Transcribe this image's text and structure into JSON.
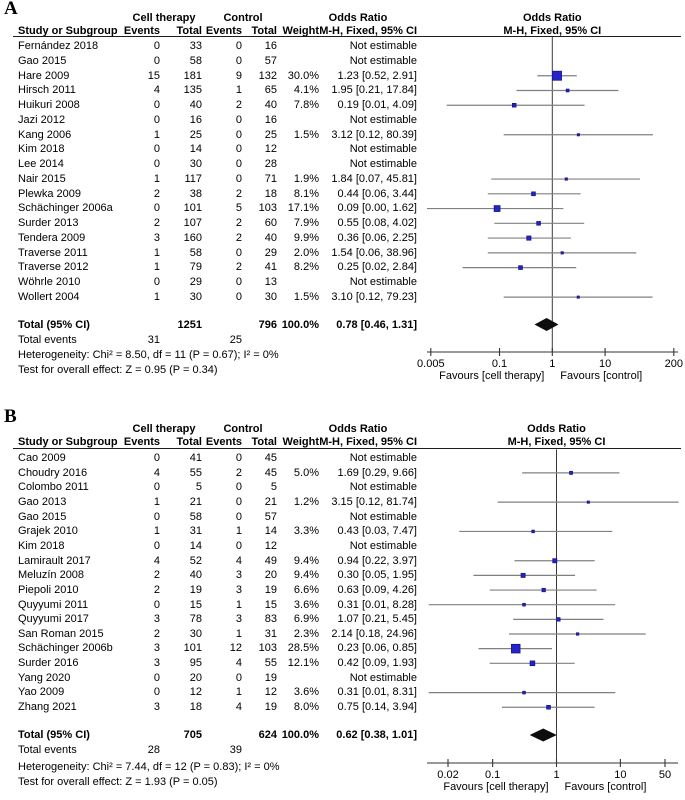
{
  "colors": {
    "background": "#ffffff",
    "text": "#000000",
    "header_rule": "#1c1c1c",
    "marker_blue": "#2424c8",
    "marker_border": "#15158a",
    "ci_line": "#808080",
    "plot_centerline": "#3a3a3a",
    "axis_line": "#333333",
    "summary_diamond": "#0d0d0d"
  },
  "chart_data": [
    {
      "type": "forest",
      "label": "A",
      "groups": {
        "treatment": "Cell therapy",
        "control": "Control",
        "or_title": "Odds Ratio"
      },
      "columns": {
        "study": "Study or Subgroup",
        "events": "Events",
        "total": "Total",
        "weight": "Weight",
        "or_ci": "M-H, Fixed, 95% CI"
      },
      "rows": [
        {
          "study": "Fernández 2018",
          "e1": "0",
          "t1": "33",
          "e2": "0",
          "t2": "16",
          "weight": "",
          "or_ci": "Not estimable",
          "or": null,
          "lo": null,
          "hi": null,
          "w": 0
        },
        {
          "study": "Gao 2015",
          "e1": "0",
          "t1": "58",
          "e2": "0",
          "t2": "57",
          "weight": "",
          "or_ci": "Not estimable",
          "or": null,
          "lo": null,
          "hi": null,
          "w": 0
        },
        {
          "study": "Hare 2009",
          "e1": "15",
          "t1": "181",
          "e2": "9",
          "t2": "132",
          "weight": "30.0%",
          "or_ci": "1.23 [0.52, 2.91]",
          "or": 1.23,
          "lo": 0.52,
          "hi": 2.91,
          "w": 30.0
        },
        {
          "study": "Hirsch 2011",
          "e1": "4",
          "t1": "135",
          "e2": "1",
          "t2": "65",
          "weight": "4.1%",
          "or_ci": "1.95 [0.21, 17.84]",
          "or": 1.95,
          "lo": 0.21,
          "hi": 17.84,
          "w": 4.1
        },
        {
          "study": "Huikuri 2008",
          "e1": "0",
          "t1": "40",
          "e2": "2",
          "t2": "40",
          "weight": "7.8%",
          "or_ci": "0.19 [0.01, 4.09]",
          "or": 0.19,
          "lo": 0.01,
          "hi": 4.09,
          "w": 7.8
        },
        {
          "study": "Jazi 2012",
          "e1": "0",
          "t1": "16",
          "e2": "0",
          "t2": "16",
          "weight": "",
          "or_ci": "Not estimable",
          "or": null,
          "lo": null,
          "hi": null,
          "w": 0
        },
        {
          "study": "Kang 2006",
          "e1": "1",
          "t1": "25",
          "e2": "0",
          "t2": "25",
          "weight": "1.5%",
          "or_ci": "3.12 [0.12, 80.39]",
          "or": 3.12,
          "lo": 0.12,
          "hi": 80.39,
          "w": 1.5
        },
        {
          "study": "Kim 2018",
          "e1": "0",
          "t1": "14",
          "e2": "0",
          "t2": "12",
          "weight": "",
          "or_ci": "Not estimable",
          "or": null,
          "lo": null,
          "hi": null,
          "w": 0
        },
        {
          "study": "Lee 2014",
          "e1": "0",
          "t1": "30",
          "e2": "0",
          "t2": "28",
          "weight": "",
          "or_ci": "Not estimable",
          "or": null,
          "lo": null,
          "hi": null,
          "w": 0
        },
        {
          "study": "Nair 2015",
          "e1": "1",
          "t1": "117",
          "e2": "0",
          "t2": "71",
          "weight": "1.9%",
          "or_ci": "1.84 [0.07, 45.81]",
          "or": 1.84,
          "lo": 0.07,
          "hi": 45.81,
          "w": 1.9
        },
        {
          "study": "Plewka 2009",
          "e1": "2",
          "t1": "38",
          "e2": "2",
          "t2": "18",
          "weight": "8.1%",
          "or_ci": "0.44 [0.06, 3.44]",
          "or": 0.44,
          "lo": 0.06,
          "hi": 3.44,
          "w": 8.1
        },
        {
          "study": "Schächinger 2006a",
          "e1": "0",
          "t1": "101",
          "e2": "5",
          "t2": "103",
          "weight": "17.1%",
          "or_ci": "0.09 [0.00, 1.62]",
          "or": 0.09,
          "lo": 0,
          "hi": 1.62,
          "w": 17.1
        },
        {
          "study": "Surder 2013",
          "e1": "2",
          "t1": "107",
          "e2": "2",
          "t2": "60",
          "weight": "7.9%",
          "or_ci": "0.55 [0.08, 4.02]",
          "or": 0.55,
          "lo": 0.08,
          "hi": 4.02,
          "w": 7.9
        },
        {
          "study": "Tendera 2009",
          "e1": "3",
          "t1": "160",
          "e2": "2",
          "t2": "40",
          "weight": "9.9%",
          "or_ci": "0.36 [0.06, 2.25]",
          "or": 0.36,
          "lo": 0.06,
          "hi": 2.25,
          "w": 9.9
        },
        {
          "study": "Traverse 2011",
          "e1": "1",
          "t1": "58",
          "e2": "0",
          "t2": "29",
          "weight": "2.0%",
          "or_ci": "1.54 [0.06, 38.96]",
          "or": 1.54,
          "lo": 0.06,
          "hi": 38.96,
          "w": 2.0
        },
        {
          "study": "Traverse 2012",
          "e1": "1",
          "t1": "79",
          "e2": "2",
          "t2": "41",
          "weight": "8.2%",
          "or_ci": "0.25 [0.02, 2.84]",
          "or": 0.25,
          "lo": 0.02,
          "hi": 2.84,
          "w": 8.2
        },
        {
          "study": "Wöhrle 2010",
          "e1": "0",
          "t1": "29",
          "e2": "0",
          "t2": "13",
          "weight": "",
          "or_ci": "Not estimable",
          "or": null,
          "lo": null,
          "hi": null,
          "w": 0
        },
        {
          "study": "Wollert 2004",
          "e1": "1",
          "t1": "30",
          "e2": "0",
          "t2": "30",
          "weight": "1.5%",
          "or_ci": "3.10 [0.12, 79.23]",
          "or": 3.1,
          "lo": 0.12,
          "hi": 79.23,
          "w": 1.5
        }
      ],
      "total_row": {
        "label": "Total (95% CI)",
        "t1": "1251",
        "t2": "796",
        "weight": "100.0%",
        "or_ci": "0.78 [0.46, 1.31]",
        "or": 0.78,
        "lo": 0.46,
        "hi": 1.31
      },
      "total_events": {
        "label": "Total events",
        "e1": "31",
        "e2": "25"
      },
      "footnotes": {
        "heterogeneity": "Heterogeneity: Chi² = 8.50, df = 11 (P = 0.67); I² = 0%",
        "overall_effect": "Test for overall effect: Z = 0.95 (P = 0.34)"
      },
      "axis": {
        "scale": "log",
        "ticks": [
          "0.005",
          "0.1",
          "1",
          "10",
          "200"
        ],
        "favours_left": "Favours [cell therapy]",
        "favours_right": "Favours [control]"
      }
    },
    {
      "type": "forest",
      "label": "B",
      "groups": {
        "treatment": "Cell therapy",
        "control": "Control",
        "or_title": "Odds Ratio"
      },
      "columns": {
        "study": "Study or Subgroup",
        "events": "Events",
        "total": "Total",
        "weight": "Weight",
        "or_ci": "M-H, Fixed, 95% CI"
      },
      "rows": [
        {
          "study": "Cao 2009",
          "e1": "0",
          "t1": "41",
          "e2": "0",
          "t2": "45",
          "weight": "",
          "or_ci": "Not estimable",
          "or": null,
          "lo": null,
          "hi": null,
          "w": 0
        },
        {
          "study": "Choudry 2016",
          "e1": "4",
          "t1": "55",
          "e2": "2",
          "t2": "45",
          "weight": "5.0%",
          "or_ci": "1.69 [0.29, 9.66]",
          "or": 1.69,
          "lo": 0.29,
          "hi": 9.66,
          "w": 5.0
        },
        {
          "study": "Colombo 2011",
          "e1": "0",
          "t1": "5",
          "e2": "0",
          "t2": "5",
          "weight": "",
          "or_ci": "Not estimable",
          "or": null,
          "lo": null,
          "hi": null,
          "w": 0
        },
        {
          "study": "Gao 2013",
          "e1": "1",
          "t1": "21",
          "e2": "0",
          "t2": "21",
          "weight": "1.2%",
          "or_ci": "3.15 [0.12, 81.74]",
          "or": 3.15,
          "lo": 0.12,
          "hi": 81.74,
          "w": 1.2
        },
        {
          "study": "Gao 2015",
          "e1": "0",
          "t1": "58",
          "e2": "0",
          "t2": "57",
          "weight": "",
          "or_ci": "Not estimable",
          "or": null,
          "lo": null,
          "hi": null,
          "w": 0
        },
        {
          "study": "Grajek 2010",
          "e1": "1",
          "t1": "31",
          "e2": "1",
          "t2": "14",
          "weight": "3.3%",
          "or_ci": "0.43 [0.03, 7.47]",
          "or": 0.43,
          "lo": 0.03,
          "hi": 7.47,
          "w": 3.3
        },
        {
          "study": "Kim 2018",
          "e1": "0",
          "t1": "14",
          "e2": "0",
          "t2": "12",
          "weight": "",
          "or_ci": "Not estimable",
          "or": null,
          "lo": null,
          "hi": null,
          "w": 0
        },
        {
          "study": "Lamirault 2017",
          "e1": "4",
          "t1": "52",
          "e2": "4",
          "t2": "49",
          "weight": "9.4%",
          "or_ci": "0.94 [0.22, 3.97]",
          "or": 0.94,
          "lo": 0.22,
          "hi": 3.97,
          "w": 9.4
        },
        {
          "study": "Meluzín 2008",
          "e1": "2",
          "t1": "40",
          "e2": "3",
          "t2": "20",
          "weight": "9.4%",
          "or_ci": "0.30 [0.05, 1.95]",
          "or": 0.3,
          "lo": 0.05,
          "hi": 1.95,
          "w": 9.4
        },
        {
          "study": "Piepoli 2010",
          "e1": "2",
          "t1": "19",
          "e2": "3",
          "t2": "19",
          "weight": "6.6%",
          "or_ci": "0.63 [0.09, 4.26]",
          "or": 0.63,
          "lo": 0.09,
          "hi": 4.26,
          "w": 6.6
        },
        {
          "study": "Quyyumi 2011",
          "e1": "0",
          "t1": "15",
          "e2": "1",
          "t2": "15",
          "weight": "3.6%",
          "or_ci": "0.31 [0.01, 8.28]",
          "or": 0.31,
          "lo": 0.01,
          "hi": 8.28,
          "w": 3.6
        },
        {
          "study": "Quyyumi 2017",
          "e1": "3",
          "t1": "78",
          "e2": "3",
          "t2": "83",
          "weight": "6.9%",
          "or_ci": "1.07 [0.21, 5.45]",
          "or": 1.07,
          "lo": 0.21,
          "hi": 5.45,
          "w": 6.9
        },
        {
          "study": "San Roman 2015",
          "e1": "2",
          "t1": "30",
          "e2": "1",
          "t2": "31",
          "weight": "2.3%",
          "or_ci": "2.14 [0.18, 24.96]",
          "or": 2.14,
          "lo": 0.18,
          "hi": 24.96,
          "w": 2.3
        },
        {
          "study": "Schächinger 2006b",
          "e1": "3",
          "t1": "101",
          "e2": "12",
          "t2": "103",
          "weight": "28.5%",
          "or_ci": "0.23 [0.06, 0.85]",
          "or": 0.23,
          "lo": 0.06,
          "hi": 0.85,
          "w": 28.5
        },
        {
          "study": "Surder 2016",
          "e1": "3",
          "t1": "95",
          "e2": "4",
          "t2": "55",
          "weight": "12.1%",
          "or_ci": "0.42 [0.09, 1.93]",
          "or": 0.42,
          "lo": 0.09,
          "hi": 1.93,
          "w": 12.1
        },
        {
          "study": "Yang 2020",
          "e1": "0",
          "t1": "20",
          "e2": "0",
          "t2": "19",
          "weight": "",
          "or_ci": "Not estimable",
          "or": null,
          "lo": null,
          "hi": null,
          "w": 0
        },
        {
          "study": "Yao 2009",
          "e1": "0",
          "t1": "12",
          "e2": "1",
          "t2": "12",
          "weight": "3.6%",
          "or_ci": "0.31 [0.01, 8.31]",
          "or": 0.31,
          "lo": 0.01,
          "hi": 8.31,
          "w": 3.6
        },
        {
          "study": "Zhang 2021",
          "e1": "3",
          "t1": "18",
          "e2": "4",
          "t2": "19",
          "weight": "8.0%",
          "or_ci": "0.75 [0.14, 3.94]",
          "or": 0.75,
          "lo": 0.14,
          "hi": 3.94,
          "w": 8.0
        }
      ],
      "total_row": {
        "label": "Total (95% CI)",
        "t1": "705",
        "t2": "624",
        "weight": "100.0%",
        "or_ci": "0.62 [0.38, 1.01]",
        "or": 0.62,
        "lo": 0.38,
        "hi": 1.01
      },
      "total_events": {
        "label": "Total events",
        "e1": "28",
        "e2": "39"
      },
      "footnotes": {
        "heterogeneity": "Heterogeneity: Chi² = 7.44, df = 12 (P = 0.83); I² = 0%",
        "overall_effect": "Test for overall effect: Z = 1.93 (P = 0.05)"
      },
      "axis": {
        "scale": "log",
        "ticks": [
          "0.02",
          "0.1",
          "1",
          "10",
          "50"
        ],
        "favours_left": "Favours [cell therapy]",
        "favours_right": "Favours [control]"
      }
    }
  ]
}
